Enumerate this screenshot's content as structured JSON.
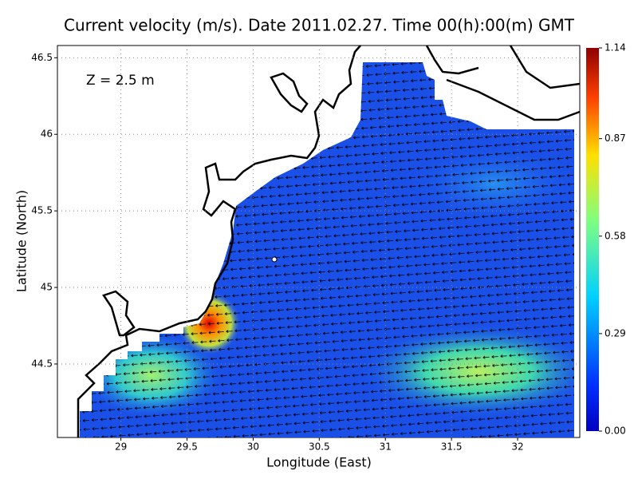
{
  "chart_data": {
    "type": "vector-field",
    "title": "Current velocity (m/s). Date 2011.02.27. Time 00(h):00(m) GMT",
    "annotation": "Z = 2.5 m",
    "x_label": "Longitude (East)",
    "y_label": "Latitude (North)",
    "xlim": [
      28.52,
      32.47
    ],
    "ylim": [
      44.02,
      46.58
    ],
    "xticks": [
      29,
      29.5,
      30,
      30.5,
      31,
      31.5,
      32
    ],
    "yticks": [
      44.5,
      45,
      45.5,
      46,
      46.5
    ],
    "grid": true,
    "colorbar": {
      "lim": [
        0,
        1.14
      ],
      "ticks": [
        {
          "value": 0,
          "label": "0.00"
        },
        {
          "value": 0.29,
          "label": "0.29"
        },
        {
          "value": 0.58,
          "label": "0.58"
        },
        {
          "value": 0.87,
          "label": "0.87"
        },
        {
          "value": 1.14,
          "label": "1.14"
        }
      ]
    }
  }
}
